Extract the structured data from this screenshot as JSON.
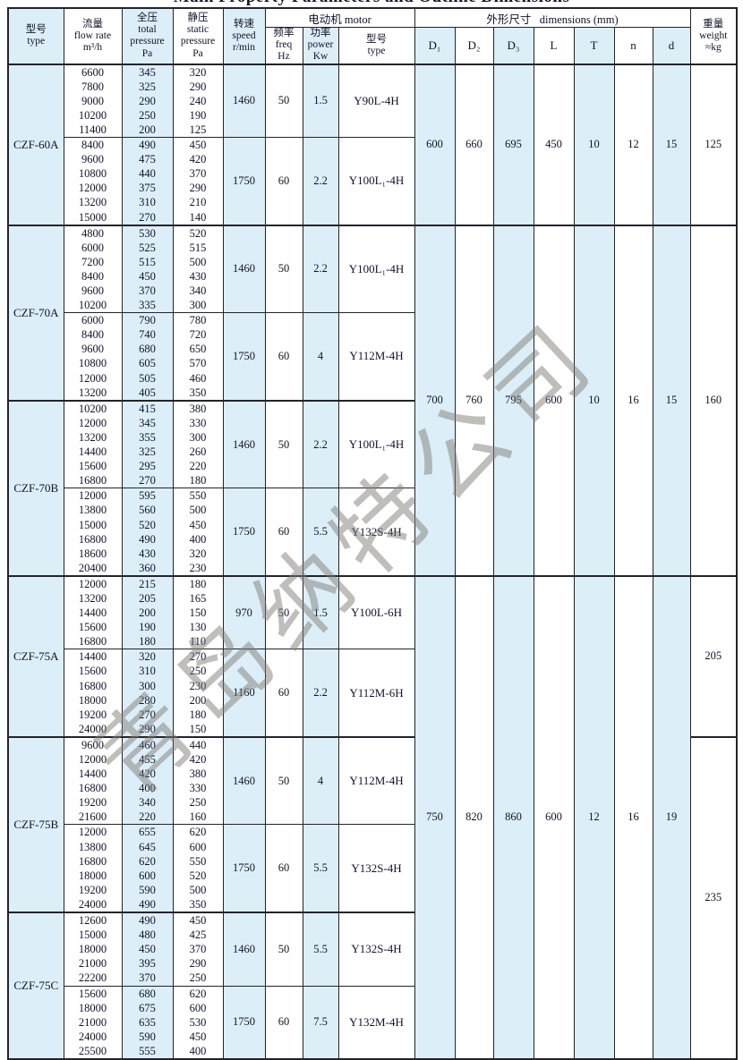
{
  "title": "Main Property Parameters and Outline Dimensions",
  "watermark": "青岛纳特公司",
  "colors": {
    "band": "#dceef8",
    "border": "#23232b",
    "text": "#12122a"
  },
  "header": {
    "type": {
      "zh": "型号",
      "en": "type"
    },
    "flow": {
      "zh": "流量",
      "en": "flow rate",
      "unit": "m³/h"
    },
    "total": {
      "zh": "全压",
      "en": "total",
      "en2": "pressure",
      "unit": "Pa"
    },
    "static": {
      "zh": "静压",
      "en": "static",
      "en2": "pressure",
      "unit": "Pa"
    },
    "speed": {
      "zh": "转速",
      "en": "speed",
      "unit": "r/min"
    },
    "motor_group": {
      "zh": "电动机",
      "en": "motor"
    },
    "freq": {
      "zh": "频率",
      "en": "freq",
      "unit": "Hz"
    },
    "power": {
      "zh": "功率",
      "en": "power",
      "unit": "Kw"
    },
    "motor_type": {
      "zh": "型号",
      "en": "type"
    },
    "dims_group": {
      "zh": "外形尺寸",
      "en": "dimensions (mm)"
    },
    "dims": [
      "D₁",
      "D₂",
      "D₃",
      "L",
      "T",
      "n",
      "d"
    ],
    "weight": {
      "zh": "重量",
      "en": "weight",
      "unit": "≈kg"
    }
  },
  "groups": [
    {
      "dims": [
        600,
        660,
        695,
        450,
        10,
        12,
        15
      ],
      "weights": [
        {
          "value": 125,
          "rows": 2
        }
      ],
      "models": [
        {
          "name": "CZF-60A",
          "subblocks": [
            {
              "flow": [
                6600,
                7800,
                9000,
                10200,
                11400
              ],
              "total": [
                345,
                325,
                290,
                250,
                200
              ],
              "static": [
                320,
                290,
                240,
                190,
                125
              ],
              "speed": 1460,
              "freq": 50,
              "power": "1.5",
              "motor": "Y90L-4H"
            },
            {
              "flow": [
                8400,
                9600,
                10800,
                12000,
                13200,
                15000
              ],
              "total": [
                490,
                475,
                440,
                375,
                310,
                270
              ],
              "static": [
                450,
                420,
                370,
                290,
                210,
                140
              ],
              "speed": 1750,
              "freq": 60,
              "power": "2.2",
              "motor": "Y100L₁-4H"
            }
          ]
        }
      ]
    },
    {
      "dims": [
        700,
        760,
        795,
        600,
        10,
        16,
        15
      ],
      "weights": [
        {
          "value": 160,
          "rows": 4
        }
      ],
      "models": [
        {
          "name": "CZF-70A",
          "subblocks": [
            {
              "flow": [
                4800,
                6000,
                7200,
                8400,
                9600,
                10200
              ],
              "total": [
                530,
                525,
                515,
                450,
                370,
                335
              ],
              "static": [
                520,
                515,
                500,
                430,
                340,
                300
              ],
              "speed": 1460,
              "freq": 50,
              "power": "2.2",
              "motor": "Y100L₁-4H"
            },
            {
              "flow": [
                6000,
                8400,
                9600,
                10800,
                12000,
                13200
              ],
              "total": [
                790,
                740,
                680,
                605,
                505,
                405
              ],
              "static": [
                780,
                720,
                650,
                570,
                460,
                350
              ],
              "speed": 1750,
              "freq": 60,
              "power": "4",
              "motor": "Y112M-4H"
            }
          ]
        },
        {
          "name": "CZF-70B",
          "subblocks": [
            {
              "flow": [
                10200,
                12000,
                13200,
                14400,
                15600,
                16800
              ],
              "total": [
                415,
                345,
                355,
                325,
                295,
                270
              ],
              "static": [
                380,
                330,
                300,
                260,
                220,
                180
              ],
              "speed": 1460,
              "freq": 50,
              "power": "2.2",
              "motor": "Y100L₁-4H"
            },
            {
              "flow": [
                12000,
                13800,
                15000,
                16800,
                18600,
                20400
              ],
              "total": [
                595,
                560,
                520,
                490,
                430,
                360
              ],
              "static": [
                550,
                500,
                450,
                400,
                320,
                230
              ],
              "speed": 1750,
              "freq": 60,
              "power": "5.5",
              "motor": "Y132S-4H"
            }
          ]
        }
      ]
    },
    {
      "dims": [
        750,
        820,
        860,
        600,
        12,
        16,
        19
      ],
      "weights": [
        {
          "value": 205,
          "rows": 2
        },
        {
          "value": 235,
          "rows": 4
        }
      ],
      "models": [
        {
          "name": "CZF-75A",
          "subblocks": [
            {
              "flow": [
                12000,
                13200,
                14400,
                15600,
                16800
              ],
              "total": [
                215,
                205,
                200,
                190,
                180
              ],
              "static": [
                180,
                165,
                150,
                130,
                110
              ],
              "speed": 970,
              "freq": 50,
              "power": "1.5",
              "motor": "Y100L-6H"
            },
            {
              "flow": [
                14400,
                15600,
                16800,
                18000,
                19200,
                24000
              ],
              "total": [
                320,
                310,
                300,
                280,
                270,
                290
              ],
              "static": [
                270,
                250,
                230,
                200,
                180,
                150
              ],
              "speed": 1160,
              "freq": 60,
              "power": "2.2",
              "motor": "Y112M-6H"
            }
          ]
        },
        {
          "name": "CZF-75B",
          "subblocks": [
            {
              "flow": [
                9600,
                12000,
                14400,
                16800,
                19200,
                21600
              ],
              "total": [
                460,
                455,
                420,
                400,
                340,
                220
              ],
              "static": [
                440,
                420,
                380,
                330,
                250,
                160
              ],
              "speed": 1460,
              "freq": 50,
              "power": "4",
              "motor": "Y112M-4H"
            },
            {
              "flow": [
                12000,
                13800,
                16800,
                18000,
                19200,
                24000
              ],
              "total": [
                655,
                645,
                620,
                600,
                590,
                490
              ],
              "static": [
                620,
                600,
                550,
                520,
                500,
                350
              ],
              "speed": 1750,
              "freq": 60,
              "power": "5.5",
              "motor": "Y132S-4H"
            }
          ]
        },
        {
          "name": "CZF-75C",
          "subblocks": [
            {
              "flow": [
                12600,
                15000,
                18000,
                21000,
                22200
              ],
              "total": [
                490,
                480,
                450,
                395,
                370
              ],
              "static": [
                450,
                425,
                370,
                290,
                250
              ],
              "speed": 1460,
              "freq": 50,
              "power": "5.5",
              "motor": "Y132S-4H"
            },
            {
              "flow": [
                15600,
                18000,
                21000,
                24000,
                25500
              ],
              "total": [
                680,
                675,
                635,
                590,
                555
              ],
              "static": [
                620,
                600,
                530,
                450,
                400
              ],
              "speed": 1750,
              "freq": 60,
              "power": "7.5",
              "motor": "Y132M-4H"
            }
          ]
        }
      ]
    }
  ]
}
